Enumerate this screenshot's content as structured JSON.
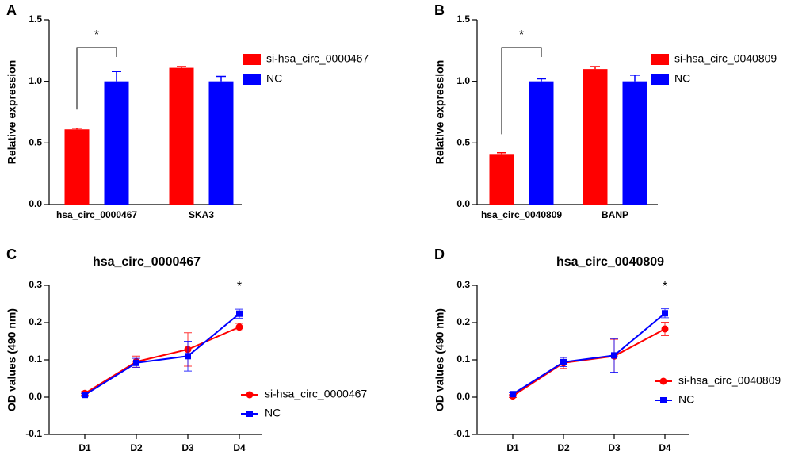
{
  "chart_data": [
    {
      "type": "bar",
      "panel": "A",
      "ylabel": "Relative expression",
      "categories": [
        "hsa_circ_0000467",
        "SKA3"
      ],
      "series": [
        {
          "name": "si-hsa_circ_0000467",
          "color": "#ff0000",
          "values": [
            0.61,
            1.11
          ],
          "errors": [
            0.01,
            0.01
          ]
        },
        {
          "name": "NC",
          "color": "#0000ff",
          "values": [
            1.0,
            1.0
          ],
          "errors": [
            0.08,
            0.04
          ]
        }
      ],
      "ylim": [
        0,
        1.5
      ],
      "yticks": [
        {
          "value": 0,
          "label": "0.0"
        },
        0.5,
        {
          "value": 1,
          "label": "1.0"
        },
        1.5
      ],
      "annotation": "*"
    },
    {
      "type": "bar",
      "panel": "B",
      "ylabel": "Relative expression",
      "categories": [
        "hsa_circ_0040809",
        "BANP"
      ],
      "series": [
        {
          "name": "si-hsa_circ_0040809",
          "color": "#ff0000",
          "values": [
            0.41,
            1.1
          ],
          "errors": [
            0.01,
            0.02
          ]
        },
        {
          "name": "NC",
          "color": "#0000ff",
          "values": [
            1.0,
            1.0
          ],
          "errors": [
            0.02,
            0.05
          ]
        }
      ],
      "ylim": [
        0,
        1.5
      ],
      "yticks": [
        {
          "value": 0,
          "label": "0.0"
        },
        0.5,
        {
          "value": 1,
          "label": "1.0"
        },
        1.5
      ],
      "annotation": "*"
    },
    {
      "type": "line",
      "panel": "C",
      "title": "hsa_circ_0000467",
      "ylabel": "OD values (490 nm)",
      "categories": [
        "D1",
        "D2",
        "D3",
        "D4"
      ],
      "series": [
        {
          "name": "si-hsa_circ_0000467",
          "color": "#ff0000",
          "marker": "circle",
          "values": [
            0.01,
            0.095,
            0.128,
            0.188
          ],
          "errors": [
            0.005,
            0.015,
            0.045,
            0.01
          ]
        },
        {
          "name": "NC",
          "color": "#0000ff",
          "marker": "square",
          "values": [
            0.006,
            0.092,
            0.11,
            0.224
          ],
          "errors": [
            0.004,
            0.012,
            0.04,
            0.012
          ]
        }
      ],
      "ylim": [
        -0.1,
        0.3
      ],
      "yticks": [
        -0.1,
        {
          "value": 0,
          "label": "0.0"
        },
        0.1,
        0.2,
        0.3
      ],
      "annotation": "*"
    },
    {
      "type": "line",
      "panel": "D",
      "title": "hsa_circ_0040809",
      "ylabel": "OD values (490 nm)",
      "categories": [
        "D1",
        "D2",
        "D3",
        "D4"
      ],
      "series": [
        {
          "name": "si-hsa_circ_0040809",
          "color": "#ff0000",
          "marker": "circle",
          "values": [
            0.003,
            0.092,
            0.11,
            0.183
          ],
          "errors": [
            0.004,
            0.015,
            0.045,
            0.018
          ]
        },
        {
          "name": "NC",
          "color": "#0000ff",
          "marker": "square",
          "values": [
            0.008,
            0.094,
            0.112,
            0.225
          ],
          "errors": [
            0.004,
            0.012,
            0.045,
            0.012
          ]
        }
      ],
      "ylim": [
        -0.1,
        0.3
      ],
      "yticks": [
        -0.1,
        {
          "value": 0,
          "label": "0.0"
        },
        0.1,
        0.2,
        0.3
      ],
      "annotation": "*"
    }
  ]
}
